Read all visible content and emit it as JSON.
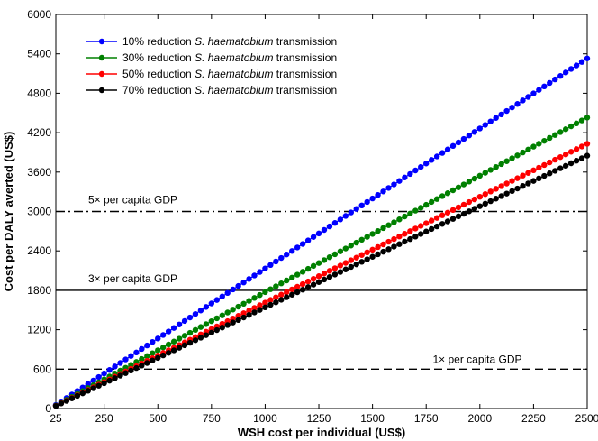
{
  "chart_data": {
    "type": "line",
    "xlabel": "WSH cost per individual (US$)",
    "ylabel": "Cost per DALY averted (US$)",
    "xlim": [
      25,
      2500
    ],
    "ylim": [
      0,
      6000
    ],
    "x_ticks": [
      25,
      250,
      500,
      750,
      1000,
      1250,
      1500,
      1750,
      2000,
      2250,
      2500
    ],
    "y_ticks": [
      0,
      600,
      1200,
      1800,
      2400,
      3000,
      3600,
      4200,
      4800,
      5400,
      6000
    ],
    "grid": false,
    "legend_position": "top-left",
    "series": [
      {
        "name_prefix": "10% reduction ",
        "name_species": "S. haematobium",
        "name_suffix": " transmission",
        "color": "#0000ff",
        "x_start": 25,
        "x_end": 2500,
        "y_start": 54,
        "y_end": 5330
      },
      {
        "name_prefix": "30% reduction ",
        "name_species": "S. haematobium",
        "name_suffix": " transmission",
        "color": "#008000",
        "x_start": 25,
        "x_end": 2500,
        "y_start": 45,
        "y_end": 4430
      },
      {
        "name_prefix": "50% reduction ",
        "name_species": "S. haematobium",
        "name_suffix": " transmission",
        "color": "#ff0000",
        "x_start": 25,
        "x_end": 2500,
        "y_start": 41,
        "y_end": 4030
      },
      {
        "name_prefix": "70% reduction ",
        "name_species": "S. haematobium",
        "name_suffix": " transmission",
        "color": "#000000",
        "x_start": 25,
        "x_end": 2500,
        "y_start": 39,
        "y_end": 3850
      }
    ],
    "reference_lines": [
      {
        "label": "5× per capita GDP",
        "y": 3000,
        "style": "dashdot"
      },
      {
        "label": "3× per capita GDP",
        "y": 1800,
        "style": "solid"
      },
      {
        "label": "1× per capita GDP",
        "y": 600,
        "style": "dashed"
      }
    ]
  }
}
